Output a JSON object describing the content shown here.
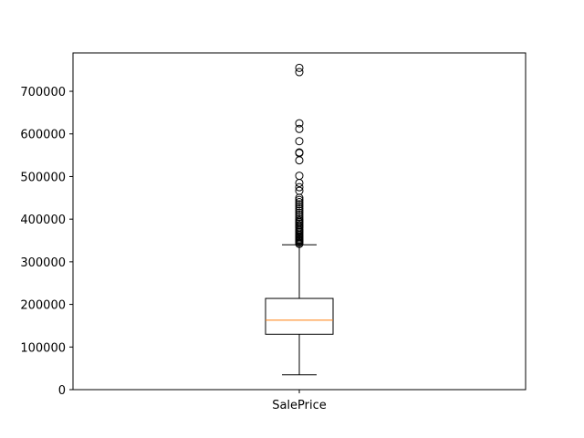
{
  "chart_data": {
    "type": "box",
    "categories": [
      "SalePrice"
    ],
    "ylim": [
      0,
      790000
    ],
    "yticks": [
      0,
      100000,
      200000,
      300000,
      400000,
      500000,
      600000,
      700000
    ],
    "ytick_labels": [
      "0",
      "100000",
      "200000",
      "300000",
      "400000",
      "500000",
      "600000",
      "700000"
    ],
    "grid": false,
    "box": {
      "whisker_low": 34900,
      "q1": 129975,
      "median": 163000,
      "q3": 214000,
      "whisker_high": 340000,
      "outliers": [
        342000,
        345000,
        348000,
        350000,
        352000,
        355000,
        358000,
        360000,
        363000,
        366000,
        370000,
        373000,
        376000,
        380000,
        383000,
        386000,
        390000,
        393000,
        396000,
        400000,
        405000,
        410000,
        415000,
        420000,
        425000,
        430000,
        435000,
        440000,
        445000,
        450000,
        466500,
        475000,
        485000,
        501837,
        538000,
        555000,
        556581,
        582933,
        611657,
        625000,
        745000,
        755000
      ]
    },
    "colors": {
      "box": "#000000",
      "median": "#ff7f0e",
      "outlier": "#000000"
    }
  }
}
